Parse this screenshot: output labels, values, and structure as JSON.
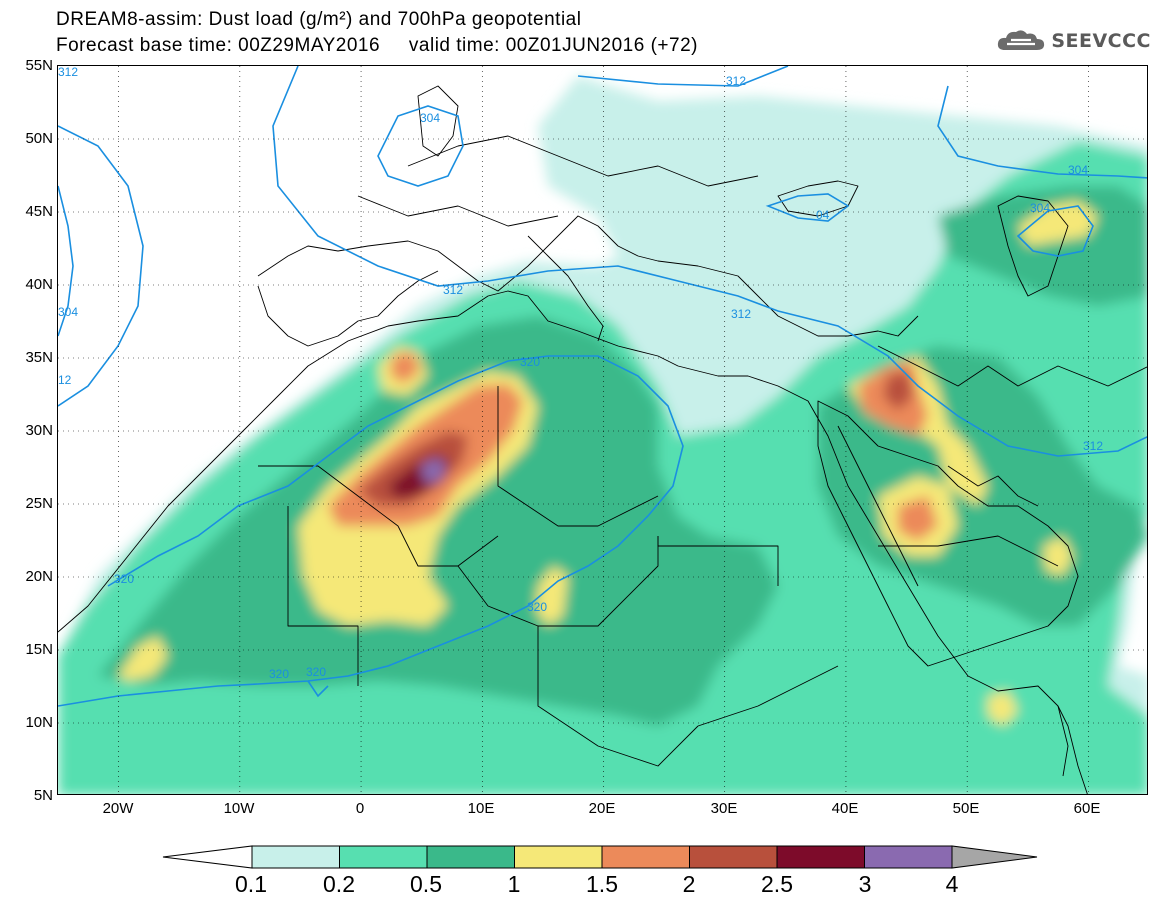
{
  "header": {
    "title_line1": "DREAM8-assim: Dust load (g/m²) and 700hPa geopotential",
    "title_line2": "Forecast base time: 00Z29MAY2016     valid time: 00Z01JUN2016 (+72)"
  },
  "logo": {
    "text": "SEEVCCC",
    "icon": "cloud-icon"
  },
  "map": {
    "lon_range": [
      -25,
      65
    ],
    "lat_range": [
      5,
      55
    ],
    "lat_ticks": [
      "55N",
      "50N",
      "45N",
      "40N",
      "35N",
      "30N",
      "25N",
      "20N",
      "15N",
      "10N",
      "5N"
    ],
    "lon_ticks": [
      "20W",
      "10W",
      "0",
      "10E",
      "20E",
      "30E",
      "40E",
      "50E",
      "60E"
    ],
    "contour_color": "#1a8fe0",
    "contour_labels": [
      "312",
      "304",
      "312",
      "304",
      "304",
      "04",
      "312",
      "312",
      "320",
      "12",
      "304",
      "312",
      "320",
      "320",
      "320",
      "320"
    ]
  },
  "colorbar": {
    "labels": [
      "0.1",
      "0.2",
      "0.5",
      "1",
      "1.5",
      "2",
      "2.5",
      "3",
      "4"
    ],
    "colors": [
      "#c8f0ea",
      "#57dfb0",
      "#3ab98a",
      "#f5e878",
      "#ec8a5a",
      "#b8503c",
      "#7d0b2a",
      "#8a6ab0"
    ],
    "over_color": "#a6a6a6",
    "under_color": "#ffffff"
  }
}
